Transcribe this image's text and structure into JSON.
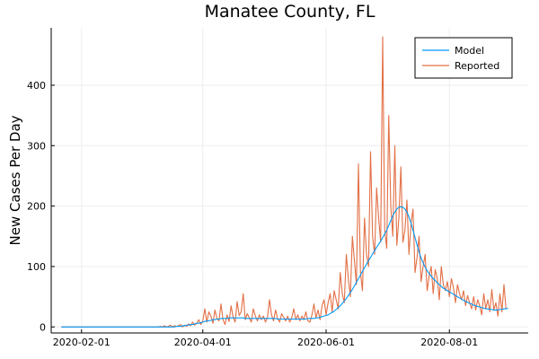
{
  "chart_data": {
    "type": "line",
    "title": "Manatee County, FL",
    "xlabel": "",
    "ylabel": "New Cases Per Day",
    "x_start": "2020-01-22",
    "x_end": "2020-09-03",
    "xlim": [
      "2020-01-17",
      "2020-09-09"
    ],
    "ylim": [
      -10,
      495
    ],
    "x_ticks": [
      "2020-02-01",
      "2020-04-01",
      "2020-06-01",
      "2020-08-01"
    ],
    "y_ticks": [
      0,
      100,
      200,
      300,
      400
    ],
    "grid": true,
    "legend_position": "top-right",
    "series": [
      {
        "name": "Model",
        "color": "#009AFA",
        "values": [
          0,
          0,
          0,
          0,
          0,
          0,
          0,
          0,
          0,
          0,
          0,
          0,
          0,
          0,
          0,
          0,
          0,
          0,
          0,
          0,
          0,
          0,
          0,
          0,
          0,
          0,
          0,
          0,
          0,
          0,
          0,
          0,
          0,
          0,
          0,
          0,
          0,
          0,
          0,
          0,
          0,
          0,
          0,
          0,
          0,
          0,
          0,
          0,
          0,
          0,
          0,
          0,
          0,
          0,
          0,
          0,
          0,
          1,
          1,
          1,
          2,
          2,
          3,
          3,
          4,
          4,
          5,
          6,
          6,
          7,
          8,
          9,
          10,
          10,
          11,
          12,
          12,
          13,
          13,
          14,
          14,
          14,
          14,
          15,
          15,
          15,
          15,
          15,
          15,
          15,
          15,
          14,
          14,
          14,
          14,
          14,
          14,
          14,
          14,
          14,
          14,
          14,
          14,
          14,
          14,
          14,
          14,
          13,
          13,
          13,
          13,
          13,
          13,
          13,
          13,
          13,
          13,
          13,
          13,
          13,
          13,
          13,
          14,
          14,
          14,
          14,
          15,
          15,
          16,
          17,
          18,
          19,
          20,
          22,
          24,
          26,
          29,
          32,
          35,
          39,
          43,
          47,
          52,
          57,
          62,
          68,
          74,
          80,
          86,
          92,
          98,
          104,
          110,
          115,
          121,
          126,
          132,
          137,
          142,
          148,
          154,
          160,
          168,
          176,
          184,
          190,
          195,
          198,
          199,
          198,
          195,
          190,
          182,
          172,
          160,
          148,
          136,
          124,
          114,
          106,
          99,
          93,
          88,
          84,
          80,
          77,
          73,
          70,
          67,
          64,
          62,
          60,
          58,
          56,
          54,
          52,
          50,
          48,
          46,
          44,
          42,
          41,
          39,
          38,
          36,
          35,
          34,
          33,
          32,
          31,
          30,
          30,
          29,
          29,
          28,
          28,
          28,
          29,
          29,
          30,
          30,
          31
        ]
      },
      {
        "name": "Reported",
        "color": "#E26F46",
        "values": [
          0,
          0,
          0,
          0,
          0,
          0,
          0,
          0,
          0,
          0,
          0,
          0,
          0,
          0,
          0,
          0,
          0,
          0,
          0,
          0,
          0,
          0,
          0,
          0,
          0,
          0,
          0,
          0,
          0,
          0,
          0,
          0,
          0,
          0,
          0,
          0,
          0,
          0,
          0,
          0,
          0,
          0,
          0,
          0,
          0,
          0,
          0,
          0,
          0,
          1,
          0,
          2,
          0,
          1,
          3,
          0,
          2,
          1,
          2,
          4,
          0,
          3,
          1,
          5,
          2,
          8,
          3,
          6,
          12,
          4,
          10,
          30,
          8,
          25,
          18,
          6,
          28,
          14,
          10,
          38,
          12,
          4,
          20,
          9,
          35,
          16,
          8,
          42,
          19,
          25,
          55,
          12,
          22,
          15,
          8,
          30,
          18,
          10,
          20,
          12,
          18,
          8,
          16,
          45,
          20,
          10,
          28,
          14,
          8,
          22,
          16,
          10,
          18,
          8,
          15,
          30,
          12,
          20,
          10,
          18,
          12,
          25,
          10,
          8,
          20,
          38,
          15,
          28,
          12,
          35,
          45,
          20,
          40,
          55,
          25,
          60,
          45,
          30,
          90,
          55,
          40,
          120,
          80,
          50,
          150,
          110,
          70,
          270,
          90,
          60,
          180,
          120,
          100,
          290,
          150,
          120,
          230,
          180,
          140,
          480,
          160,
          130,
          350,
          200,
          150,
          300,
          135,
          180,
          265,
          140,
          160,
          210,
          120,
          170,
          195,
          90,
          115,
          150,
          75,
          100,
          120,
          60,
          85,
          100,
          55,
          95,
          80,
          45,
          100,
          70,
          60,
          75,
          50,
          80,
          65,
          40,
          70,
          55,
          45,
          60,
          35,
          52,
          40,
          30,
          50,
          28,
          45,
          35,
          20,
          55,
          30,
          45,
          25,
          62,
          28,
          40,
          18,
          55,
          25,
          70,
          30
        ]
      }
    ]
  }
}
